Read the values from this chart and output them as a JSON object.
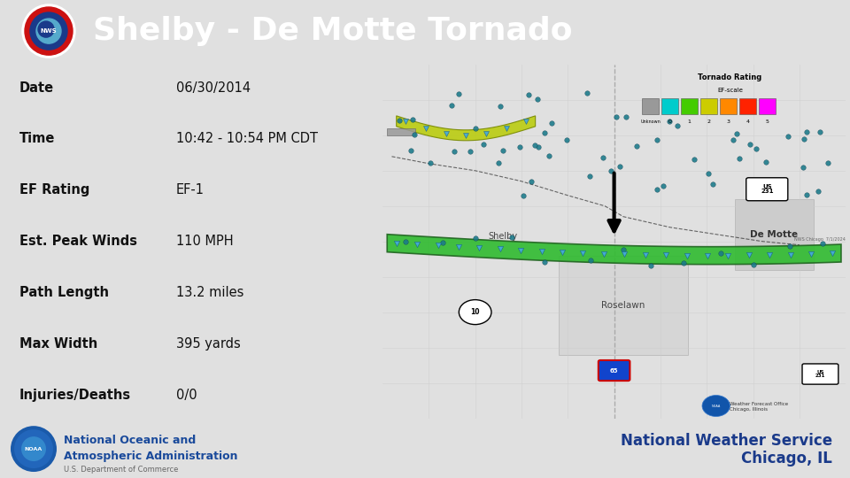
{
  "title": "Shelby - De Motte Tornado",
  "header_bg": "#1a4a9b",
  "header_text_color": "#ffffff",
  "page_bg": "#e0e0e0",
  "table_rows": [
    {
      "label": "Date",
      "value": "06/30/2014",
      "bg": "#e8e8e8"
    },
    {
      "label": "Time",
      "value": "10:42 - 10:54 PM CDT",
      "bg": "#c5d5e8"
    },
    {
      "label": "EF Rating",
      "value": "EF-1",
      "bg": "#e8e8e8"
    },
    {
      "label": "Est. Peak Winds",
      "value": "110 MPH",
      "bg": "#c5d5e8"
    },
    {
      "label": "Path Length",
      "value": "13.2 miles",
      "bg": "#e8e8e8"
    },
    {
      "label": "Max Width",
      "value": "395 yards",
      "bg": "#c5d5e8"
    },
    {
      "label": "Injuries/Deaths",
      "value": "0/0",
      "bg": "#e8e8e8"
    }
  ],
  "footer_bg": "#e0e0e0",
  "footer_left_text1": "National Oceanic and",
  "footer_left_text2": "Atmospheric Administration",
  "footer_left_text3": "U.S. Department of Commerce",
  "footer_right_text1": "National Weather Service",
  "footer_right_text2": "Chicago, IL",
  "legend_colors": [
    "#999999",
    "#00cccc",
    "#44cc00",
    "#cccc00",
    "#ff8800",
    "#ff2200",
    "#ff00ff"
  ],
  "legend_labels": [
    "Unknown",
    "0",
    "1",
    "2",
    "3",
    "4",
    "5"
  ]
}
